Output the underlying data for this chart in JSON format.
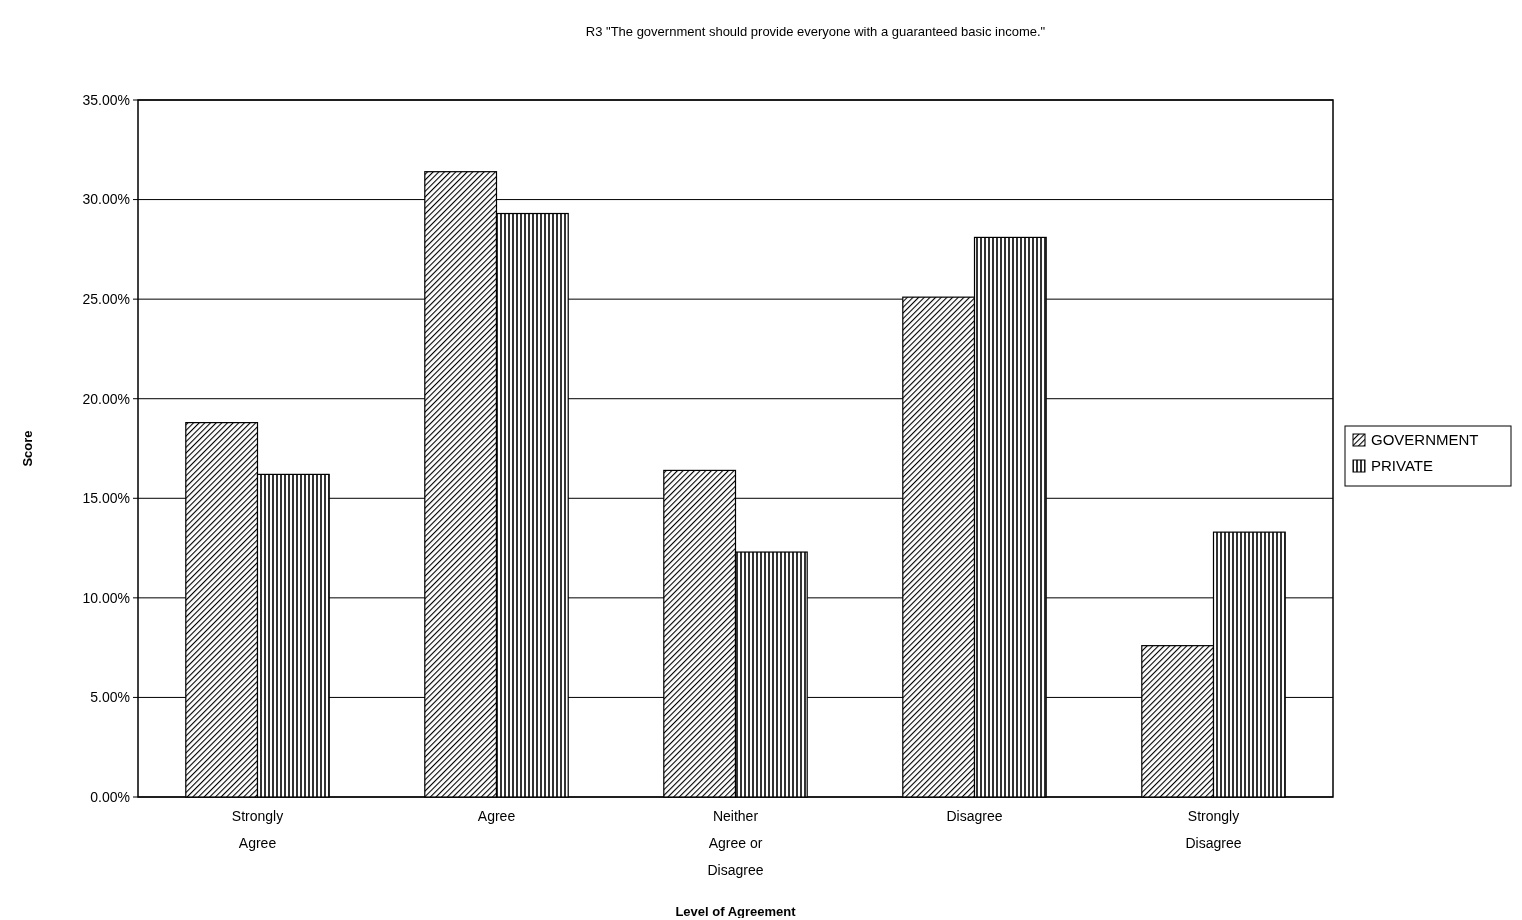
{
  "chart_data": {
    "type": "bar",
    "title": "R3 \"The government should provide everyone with a guaranteed basic income.\"",
    "xlabel": "Level of Agreement",
    "ylabel": "Score",
    "categories": [
      "Strongly Agree",
      "Agree",
      "Neither Agree or Disagree",
      "Disagree",
      "Strongly Disagree"
    ],
    "series": [
      {
        "name": "GOVERNMENT",
        "color": "#000000",
        "values": [
          18.8,
          31.4,
          16.4,
          25.1,
          7.6
        ]
      },
      {
        "name": "PRIVATE",
        "color": "#000000",
        "values": [
          16.2,
          29.3,
          12.3,
          28.1,
          13.3
        ]
      }
    ],
    "ylim": [
      0,
      35
    ],
    "yticks": [
      {
        "value": 0,
        "label": "0.00%"
      },
      {
        "value": 5,
        "label": "5.00%"
      },
      {
        "value": 10,
        "label": "10.00%"
      },
      {
        "value": 15,
        "label": "15.00%"
      },
      {
        "value": 20,
        "label": "20.00%"
      },
      {
        "value": 25,
        "label": "25.00%"
      },
      {
        "value": 30,
        "label": "30.00%"
      },
      {
        "value": 35,
        "label": "35.00%"
      }
    ],
    "grid": "y",
    "legend": "right"
  }
}
